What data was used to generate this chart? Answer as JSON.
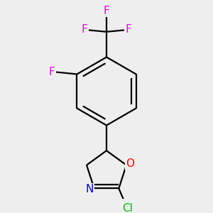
{
  "background_color": "#eeeeee",
  "bond_color": "#000000",
  "bond_width": 1.6,
  "atom_colors": {
    "F": "#ee00ee",
    "Cl": "#00bb00",
    "O": "#ff0000",
    "N": "#0000ff",
    "C": "#000000"
  },
  "font_size_main": 11
}
